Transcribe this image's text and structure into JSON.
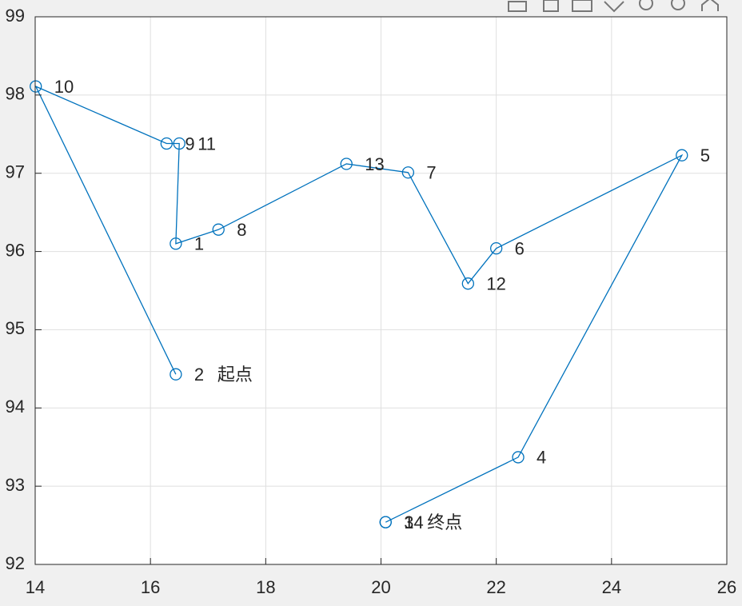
{
  "chart_data": {
    "type": "line",
    "x": [
      16.44,
      14.01,
      16.28,
      16.5,
      16.44,
      17.18,
      19.4,
      20.47,
      21.51,
      22.0,
      25.22,
      22.38,
      20.08,
      20.08
    ],
    "series": [
      {
        "color": "#0072bd",
        "values": [
          94.43,
          98.11,
          97.38,
          97.38,
          96.1,
          96.28,
          97.12,
          97.01,
          95.59,
          96.04,
          97.23,
          93.37,
          92.54,
          92.54
        ],
        "value_labels": [
          "2",
          "10",
          "9",
          "11",
          "1",
          "8",
          "13",
          "7",
          "12",
          "6",
          "5",
          "4",
          "3",
          "14"
        ]
      }
    ],
    "annotations": [
      "起点",
      "终点"
    ],
    "xlim": [
      14,
      26
    ],
    "xticks": [
      14,
      16,
      18,
      20,
      22,
      24,
      26
    ],
    "ylim": [
      92,
      99
    ],
    "yticks": [
      92,
      93,
      94,
      95,
      96,
      97,
      98,
      99
    ],
    "grid": true
  }
}
